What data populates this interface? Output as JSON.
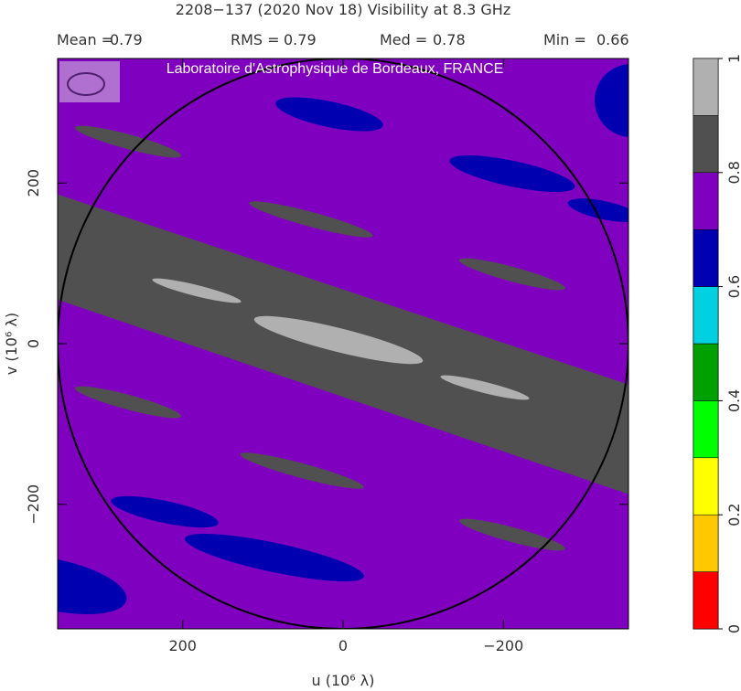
{
  "chart_data": {
    "type": "map",
    "title": "2208−137   (2020 Nov 18)   Visibility at  8.3 GHz",
    "stats": [
      {
        "label": "Mean =",
        "value": 0.79
      },
      {
        "label": "RMS =",
        "value": 0.79
      },
      {
        "label": "Med =",
        "value": 0.78
      },
      {
        "label": "Min =",
        "value": 0.66
      }
    ],
    "watermark": "Laboratoire d'Astrophysique de Bordeaux, FRANCE",
    "x_label": "u  (10⁶ λ)",
    "y_label": "v  (10⁶ λ)",
    "xlim": [
      356,
      -356
    ],
    "ylim": [
      -355,
      355
    ],
    "xticks": [
      200,
      0,
      {
        "value": -200,
        "label": "−200"
      }
    ],
    "yticks": [
      {
        "value": -200,
        "label": "−200"
      },
      0,
      200
    ],
    "colorbar": {
      "lim": [
        0,
        1
      ],
      "ticks": [
        0,
        0.2,
        0.4,
        0.6,
        0.8,
        1
      ],
      "colors": [
        "#ff0000",
        "#ffc800",
        "#ffff00",
        "#00ff00",
        "#00a000",
        "#00d0e0",
        "#0000b0",
        "#8000c0",
        "#505050",
        "#b0b0b0"
      ]
    }
  }
}
